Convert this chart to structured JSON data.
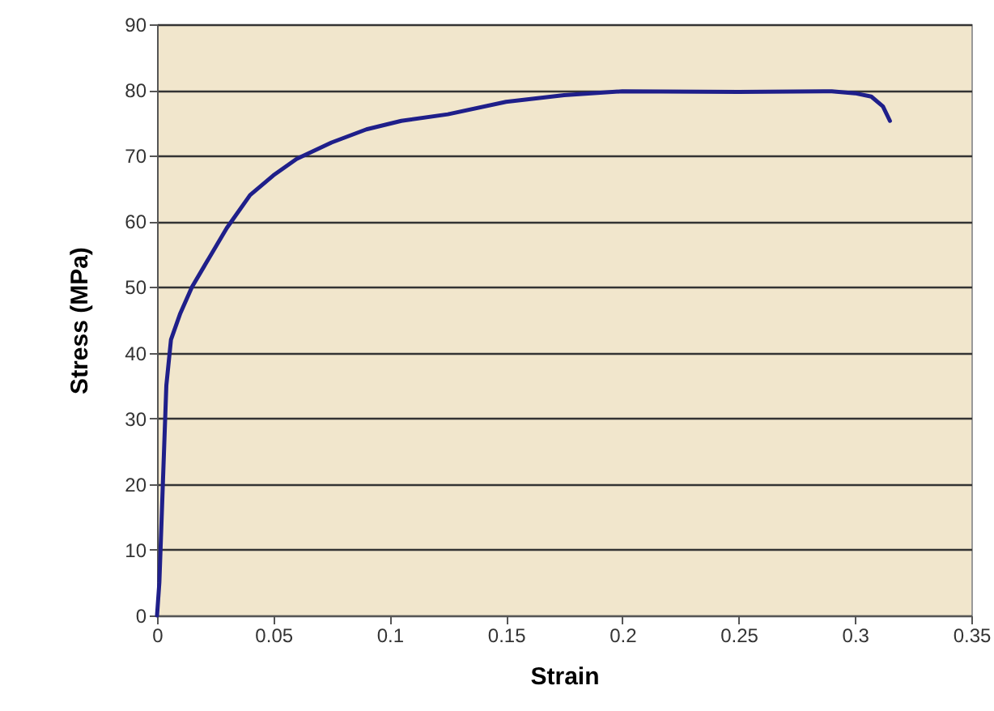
{
  "chart_data": {
    "type": "line",
    "xlabel": "Strain",
    "ylabel": "Stress (MPa)",
    "x": [
      0,
      0.001,
      0.002,
      0.003,
      0.004,
      0.006,
      0.01,
      0.015,
      0.02,
      0.03,
      0.04,
      0.05,
      0.06,
      0.075,
      0.09,
      0.105,
      0.125,
      0.15,
      0.175,
      0.2,
      0.25,
      0.29,
      0.3,
      0.307,
      0.312,
      0.315
    ],
    "series": [
      {
        "color": "#1f1f8a",
        "values": [
          0,
          5,
          15,
          25,
          35,
          42,
          46,
          50,
          53,
          59,
          64,
          67,
          69.5,
          72,
          74,
          75.3,
          76.3,
          78.2,
          79.2,
          79.8,
          79.7,
          79.8,
          79.5,
          79,
          77.5,
          75.3
        ]
      }
    ],
    "xlim": [
      0,
      0.35
    ],
    "xticks": [
      0,
      0.05,
      0.1,
      0.15,
      0.2,
      0.25,
      0.3,
      0.35
    ],
    "ylim": [
      0,
      90
    ],
    "yticks": [
      0,
      10,
      20,
      30,
      40,
      50,
      60,
      70,
      80,
      90
    ],
    "grid": "y",
    "marker": "none",
    "line_style": "solid"
  }
}
